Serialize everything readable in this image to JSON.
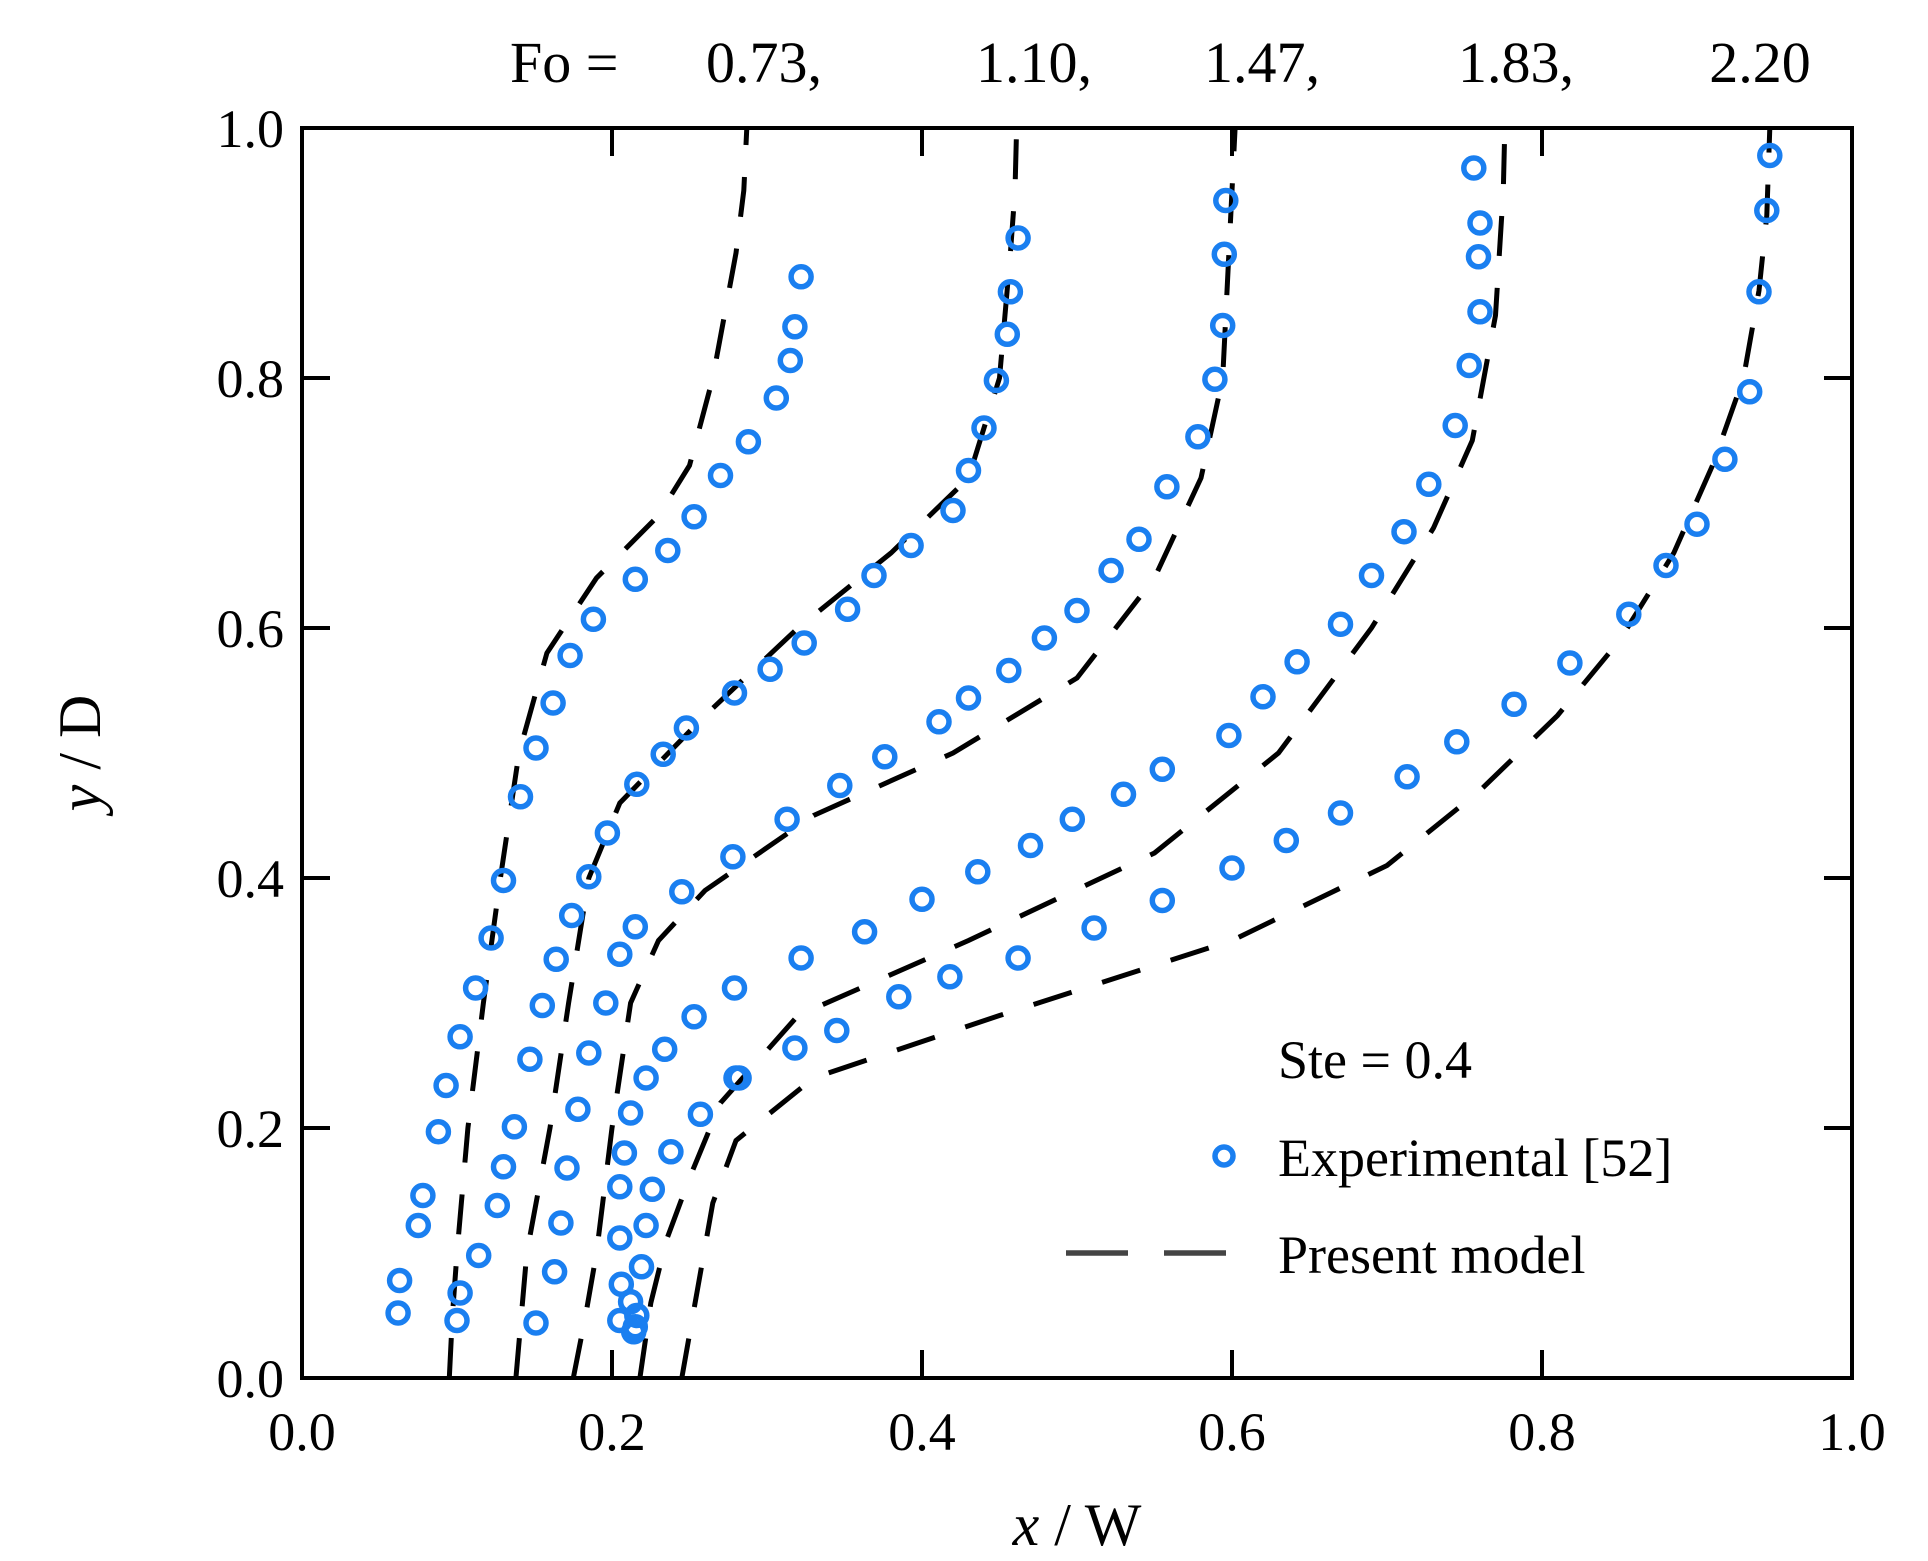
{
  "chart_data": {
    "type": "scatter",
    "title_prefix": "Fo =",
    "fo_labels": [
      "0.73,",
      "1.10,",
      "1.47,",
      "1.83,",
      "2.20"
    ],
    "xlabel_var": "x",
    "xlabel_unit": " / W",
    "ylabel_var": "y",
    "ylabel_unit": " / D",
    "xlim": [
      0,
      1
    ],
    "ylim": [
      0,
      1
    ],
    "xticks": [
      0.0,
      0.2,
      0.4,
      0.6,
      0.8,
      1.0
    ],
    "yticks": [
      0.0,
      0.2,
      0.4,
      0.6,
      0.8,
      1.0
    ],
    "xtick_labels": [
      "0.0",
      "0.2",
      "0.4",
      "0.6",
      "0.8",
      "1.0"
    ],
    "ytick_labels": [
      "0.0",
      "0.2",
      "0.4",
      "0.6",
      "0.8",
      "1.0"
    ],
    "annotation": "Ste = 0.4",
    "legend": {
      "experimental": "Experimental [52]",
      "model": "Present model"
    },
    "colors": {
      "experimental": "#1a7ff0",
      "model": "#000000",
      "axis": "#000000"
    },
    "series": [
      {
        "name": "Fo = 0.73",
        "experimental": [
          [
            0.062,
            0.052
          ],
          [
            0.063,
            0.078
          ],
          [
            0.075,
            0.122
          ],
          [
            0.078,
            0.146
          ],
          [
            0.088,
            0.197
          ],
          [
            0.093,
            0.234
          ],
          [
            0.102,
            0.273
          ],
          [
            0.112,
            0.312
          ],
          [
            0.122,
            0.352
          ],
          [
            0.13,
            0.398
          ],
          [
            0.141,
            0.465
          ],
          [
            0.151,
            0.504
          ],
          [
            0.162,
            0.54
          ],
          [
            0.173,
            0.578
          ],
          [
            0.188,
            0.607
          ],
          [
            0.215,
            0.639
          ],
          [
            0.236,
            0.662
          ],
          [
            0.253,
            0.689
          ],
          [
            0.27,
            0.722
          ],
          [
            0.288,
            0.749
          ],
          [
            0.306,
            0.784
          ],
          [
            0.315,
            0.814
          ],
          [
            0.318,
            0.841
          ],
          [
            0.322,
            0.881
          ]
        ],
        "model": [
          [
            0.095,
            0.0
          ],
          [
            0.097,
            0.05
          ],
          [
            0.1,
            0.1
          ],
          [
            0.107,
            0.2
          ],
          [
            0.117,
            0.3
          ],
          [
            0.128,
            0.4
          ],
          [
            0.14,
            0.5
          ],
          [
            0.158,
            0.58
          ],
          [
            0.19,
            0.64
          ],
          [
            0.23,
            0.69
          ],
          [
            0.25,
            0.73
          ],
          [
            0.265,
            0.8
          ],
          [
            0.28,
            0.9
          ],
          [
            0.285,
            0.95
          ],
          [
            0.287,
            1.0
          ]
        ]
      },
      {
        "name": "Fo = 1.10",
        "experimental": [
          [
            0.1,
            0.046
          ],
          [
            0.102,
            0.068
          ],
          [
            0.114,
            0.098
          ],
          [
            0.126,
            0.138
          ],
          [
            0.13,
            0.169
          ],
          [
            0.137,
            0.201
          ],
          [
            0.147,
            0.255
          ],
          [
            0.155,
            0.298
          ],
          [
            0.164,
            0.335
          ],
          [
            0.174,
            0.37
          ],
          [
            0.185,
            0.401
          ],
          [
            0.197,
            0.436
          ],
          [
            0.216,
            0.475
          ],
          [
            0.233,
            0.499
          ],
          [
            0.248,
            0.52
          ],
          [
            0.279,
            0.548
          ],
          [
            0.302,
            0.567
          ],
          [
            0.324,
            0.588
          ],
          [
            0.352,
            0.615
          ],
          [
            0.369,
            0.642
          ],
          [
            0.393,
            0.666
          ],
          [
            0.42,
            0.694
          ],
          [
            0.43,
            0.726
          ],
          [
            0.44,
            0.76
          ],
          [
            0.448,
            0.798
          ],
          [
            0.455,
            0.835
          ],
          [
            0.457,
            0.869
          ],
          [
            0.462,
            0.912
          ]
        ],
        "model": [
          [
            0.138,
            0.0
          ],
          [
            0.145,
            0.1
          ],
          [
            0.16,
            0.2
          ],
          [
            0.172,
            0.3
          ],
          [
            0.185,
            0.4
          ],
          [
            0.205,
            0.46
          ],
          [
            0.26,
            0.53
          ],
          [
            0.32,
            0.6
          ],
          [
            0.38,
            0.66
          ],
          [
            0.43,
            0.72
          ],
          [
            0.45,
            0.8
          ],
          [
            0.457,
            0.9
          ],
          [
            0.46,
            0.95
          ],
          [
            0.461,
            1.0
          ]
        ]
      },
      {
        "name": "Fo = 1.47",
        "experimental": [
          [
            0.151,
            0.044
          ],
          [
            0.163,
            0.085
          ],
          [
            0.167,
            0.124
          ],
          [
            0.171,
            0.168
          ],
          [
            0.178,
            0.215
          ],
          [
            0.185,
            0.26
          ],
          [
            0.196,
            0.3
          ],
          [
            0.205,
            0.339
          ],
          [
            0.215,
            0.361
          ],
          [
            0.212,
            0.212
          ],
          [
            0.208,
            0.18
          ],
          [
            0.205,
            0.153
          ],
          [
            0.205,
            0.112
          ],
          [
            0.206,
            0.075
          ],
          [
            0.205,
            0.046
          ],
          [
            0.216,
            0.05
          ],
          [
            0.214,
            0.037
          ],
          [
            0.219,
            0.089
          ],
          [
            0.222,
            0.122
          ],
          [
            0.226,
            0.151
          ],
          [
            0.222,
            0.24
          ],
          [
            0.234,
            0.263
          ],
          [
            0.245,
            0.389
          ],
          [
            0.278,
            0.417
          ],
          [
            0.313,
            0.447
          ],
          [
            0.347,
            0.474
          ],
          [
            0.376,
            0.497
          ],
          [
            0.411,
            0.525
          ],
          [
            0.43,
            0.544
          ],
          [
            0.456,
            0.566
          ],
          [
            0.479,
            0.592
          ],
          [
            0.5,
            0.614
          ],
          [
            0.522,
            0.646
          ],
          [
            0.54,
            0.671
          ],
          [
            0.558,
            0.713
          ],
          [
            0.578,
            0.753
          ],
          [
            0.589,
            0.799
          ],
          [
            0.594,
            0.842
          ],
          [
            0.595,
            0.899
          ],
          [
            0.596,
            0.942
          ]
        ],
        "model": [
          [
            0.175,
            0.0
          ],
          [
            0.183,
            0.05
          ],
          [
            0.19,
            0.1
          ],
          [
            0.2,
            0.2
          ],
          [
            0.212,
            0.3
          ],
          [
            0.23,
            0.35
          ],
          [
            0.26,
            0.39
          ],
          [
            0.33,
            0.45
          ],
          [
            0.42,
            0.5
          ],
          [
            0.5,
            0.56
          ],
          [
            0.55,
            0.64
          ],
          [
            0.58,
            0.72
          ],
          [
            0.594,
            0.8
          ],
          [
            0.598,
            0.9
          ],
          [
            0.6,
            0.95
          ],
          [
            0.602,
            1.0
          ]
        ]
      },
      {
        "name": "Fo = 1.83",
        "experimental": [
          [
            0.215,
            0.041
          ],
          [
            0.212,
            0.061
          ],
          [
            0.238,
            0.181
          ],
          [
            0.257,
            0.211
          ],
          [
            0.282,
            0.24
          ],
          [
            0.253,
            0.289
          ],
          [
            0.279,
            0.312
          ],
          [
            0.322,
            0.336
          ],
          [
            0.363,
            0.357
          ],
          [
            0.4,
            0.383
          ],
          [
            0.436,
            0.405
          ],
          [
            0.47,
            0.426
          ],
          [
            0.497,
            0.447
          ],
          [
            0.53,
            0.467
          ],
          [
            0.555,
            0.487
          ],
          [
            0.598,
            0.514
          ],
          [
            0.62,
            0.545
          ],
          [
            0.642,
            0.573
          ],
          [
            0.67,
            0.603
          ],
          [
            0.69,
            0.642
          ],
          [
            0.711,
            0.677
          ],
          [
            0.727,
            0.715
          ],
          [
            0.744,
            0.762
          ],
          [
            0.753,
            0.81
          ],
          [
            0.76,
            0.853
          ],
          [
            0.759,
            0.897
          ],
          [
            0.76,
            0.924
          ],
          [
            0.756,
            0.968
          ]
        ],
        "model": [
          [
            0.218,
            0.0
          ],
          [
            0.225,
            0.06
          ],
          [
            0.235,
            0.11
          ],
          [
            0.25,
            0.16
          ],
          [
            0.27,
            0.22
          ],
          [
            0.32,
            0.29
          ],
          [
            0.43,
            0.35
          ],
          [
            0.55,
            0.42
          ],
          [
            0.63,
            0.5
          ],
          [
            0.69,
            0.6
          ],
          [
            0.73,
            0.68
          ],
          [
            0.755,
            0.75
          ],
          [
            0.77,
            0.85
          ],
          [
            0.775,
            0.95
          ],
          [
            0.776,
            1.0
          ]
        ]
      },
      {
        "name": "Fo = 2.20",
        "experimental": [
          [
            0.28,
            0.24
          ],
          [
            0.318,
            0.264
          ],
          [
            0.345,
            0.278
          ],
          [
            0.385,
            0.305
          ],
          [
            0.418,
            0.321
          ],
          [
            0.462,
            0.336
          ],
          [
            0.511,
            0.36
          ],
          [
            0.555,
            0.382
          ],
          [
            0.6,
            0.408
          ],
          [
            0.635,
            0.43
          ],
          [
            0.67,
            0.452
          ],
          [
            0.713,
            0.481
          ],
          [
            0.745,
            0.509
          ],
          [
            0.782,
            0.539
          ],
          [
            0.818,
            0.572
          ],
          [
            0.856,
            0.611
          ],
          [
            0.88,
            0.65
          ],
          [
            0.9,
            0.683
          ],
          [
            0.918,
            0.735
          ],
          [
            0.934,
            0.789
          ],
          [
            0.94,
            0.869
          ],
          [
            0.945,
            0.934
          ],
          [
            0.947,
            0.978
          ]
        ],
        "model": [
          [
            0.245,
            0.0
          ],
          [
            0.255,
            0.07
          ],
          [
            0.265,
            0.14
          ],
          [
            0.28,
            0.19
          ],
          [
            0.33,
            0.24
          ],
          [
            0.45,
            0.29
          ],
          [
            0.6,
            0.35
          ],
          [
            0.7,
            0.41
          ],
          [
            0.76,
            0.47
          ],
          [
            0.81,
            0.53
          ],
          [
            0.85,
            0.59
          ],
          [
            0.885,
            0.66
          ],
          [
            0.91,
            0.73
          ],
          [
            0.93,
            0.8
          ],
          [
            0.94,
            0.87
          ],
          [
            0.945,
            0.93
          ],
          [
            0.947,
            1.0
          ]
        ]
      }
    ]
  }
}
